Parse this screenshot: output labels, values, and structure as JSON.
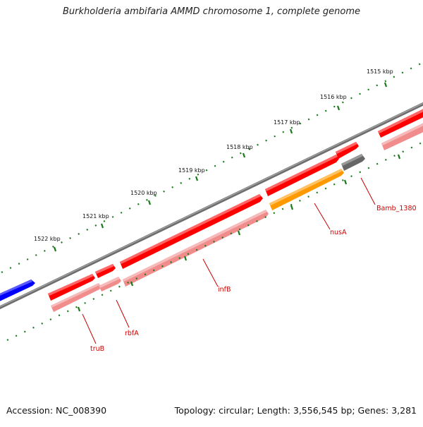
{
  "title": "Burkholderia ambifaria AMMD chromosome 1, complete genome",
  "footer": {
    "accession": "Accession: NC_008390",
    "summary": "Topology: circular; Length: 3,556,545 bp; Genes: 3,281"
  },
  "scale_labels": [
    "1515 kbp",
    "1516 kbp",
    "1517 kbp",
    "1518 kbp",
    "1519 kbp",
    "1520 kbp",
    "1521 kbp",
    "1522 kbp"
  ],
  "gene_labels": [
    "truB",
    "rbfA",
    "infB",
    "nusA",
    "Bamb_1380"
  ],
  "colors": {
    "backbone": "#7a7a7a",
    "gene_forward": "#ff0000",
    "gene_reverse": "#f08c8c",
    "gene_blue": "#0000ff",
    "gene_orange": "#ff9900",
    "gene_gray": "#666666",
    "tick": "#1a7a1a",
    "label": "#cc0000"
  }
}
